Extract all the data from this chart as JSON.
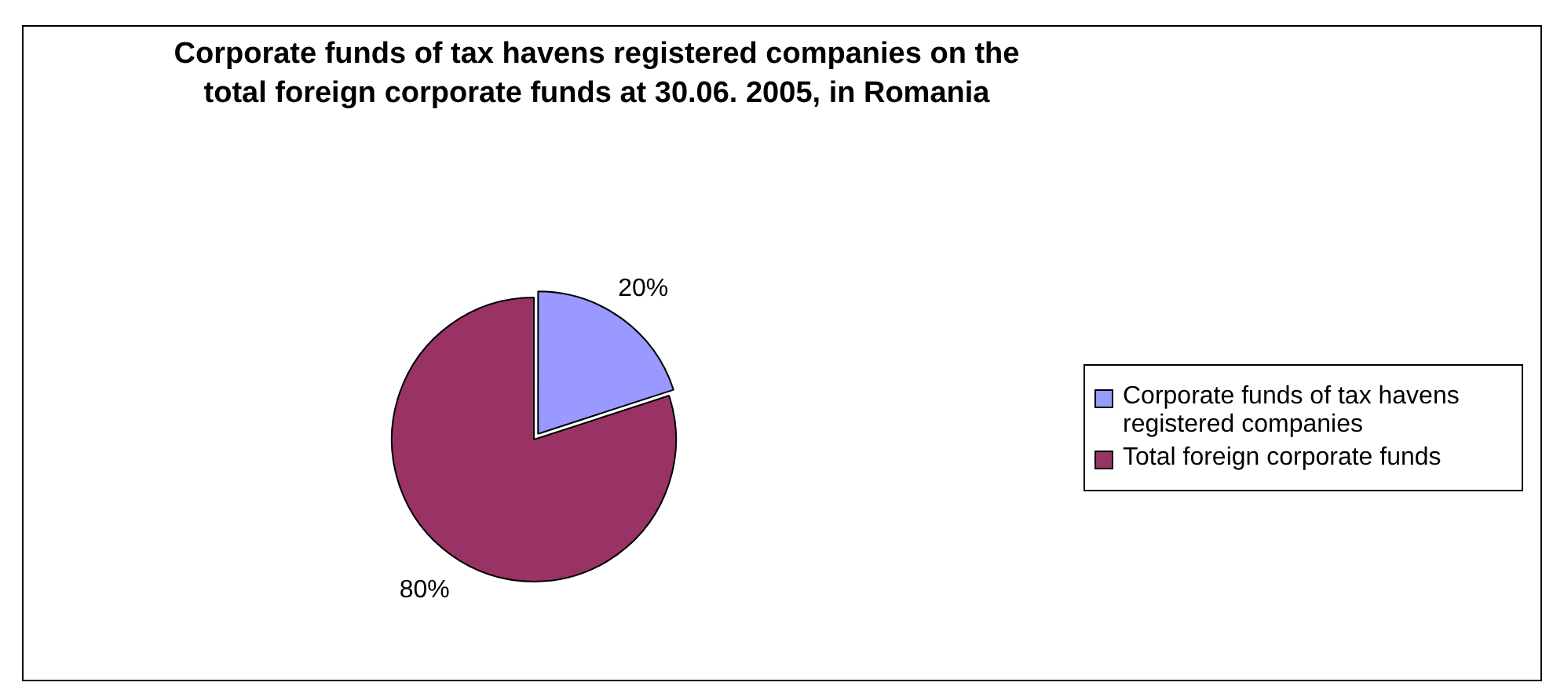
{
  "chart_data": {
    "type": "pie",
    "title": "Corporate funds of tax havens registered companies on the total foreign corporate funds at 30.06. 2005, in Romania",
    "categories": [
      "Corporate funds of tax havens registered companies",
      "Total foreign corporate funds"
    ],
    "values": [
      20,
      80
    ],
    "colors": [
      "#9999ff",
      "#993366"
    ],
    "value_labels": [
      "20%",
      "80%"
    ],
    "legend": "right"
  }
}
